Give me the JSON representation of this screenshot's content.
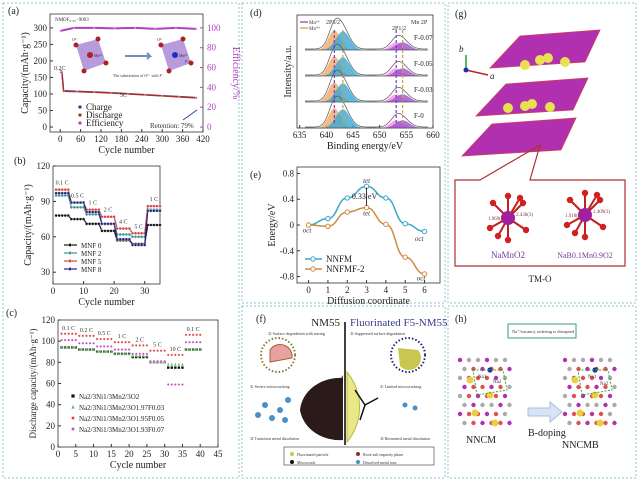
{
  "panels": {
    "a": {
      "label": "(a)"
    },
    "b": {
      "label": "(b)"
    },
    "c": {
      "label": "(c)"
    },
    "d": {
      "label": "(d)"
    },
    "e": {
      "label": "(e)"
    },
    "f": {
      "label": "(f)"
    },
    "g": {
      "label": "(g)"
    },
    "h": {
      "label": "(h)"
    }
  },
  "chart_data": [
    {
      "id": "a",
      "type": "line",
      "xlabel": "Cycle number",
      "ylabel": "Capacity/(mAh·g⁻¹)",
      "y2label": "Efficiency/%",
      "xlim": [
        -30,
        420
      ],
      "ylim": [
        -15,
        342
      ],
      "y2lim": [
        -5,
        114
      ],
      "xticks": [
        0,
        60,
        120,
        180,
        240,
        300,
        360,
        420
      ],
      "yticks": [
        0,
        50,
        100,
        150,
        200,
        250,
        300
      ],
      "y2ticks": [
        0,
        20,
        40,
        60,
        80,
        100
      ],
      "annotations": {
        "sample": "NMOF₀.₀₃−9003",
        "rate1": "0.2C",
        "rate2": "5C",
        "retention": "Retention: 79%",
        "substitution": "The substitution of O²⁻ with F⁻",
        "ion_o": "O²⁻",
        "ion_mn": "Mn³⁺",
        "ion_f": "F⁻"
      },
      "series": [
        {
          "name": "Charge",
          "color": "#2b3a8c",
          "points": [
            [
              1,
              172
            ],
            [
              3,
              170
            ],
            [
              5,
              168
            ],
            [
              10,
              110
            ],
            [
              50,
              108
            ],
            [
              100,
              106
            ],
            [
              150,
              104
            ],
            [
              200,
              101
            ],
            [
              250,
              98
            ],
            [
              300,
              95
            ],
            [
              350,
              92
            ],
            [
              400,
              89
            ]
          ]
        },
        {
          "name": "Discharge",
          "color": "#b22a2a",
          "points": [
            [
              1,
              165
            ],
            [
              3,
              166
            ],
            [
              5,
              165
            ],
            [
              10,
              108
            ],
            [
              50,
              107
            ],
            [
              100,
              105
            ],
            [
              150,
              103
            ],
            [
              200,
              100
            ],
            [
              250,
              97
            ],
            [
              300,
              94
            ],
            [
              350,
              91
            ],
            [
              400,
              88
            ]
          ]
        },
        {
          "name": "Efficiency",
          "color": "#b040c0",
          "axis": "right",
          "points": [
            [
              1,
              97
            ],
            [
              40,
              100
            ],
            [
              100,
              100
            ],
            [
              160,
              99.5
            ],
            [
              220,
              100
            ],
            [
              280,
              99
            ],
            [
              340,
              100
            ],
            [
              400,
              99
            ]
          ]
        }
      ]
    },
    {
      "id": "b",
      "type": "line",
      "xlabel": "Cycle number",
      "ylabel": "Capacity/(mAh·g⁻¹)",
      "xlim": [
        0,
        35
      ],
      "ylim": [
        20,
        120
      ],
      "xticks": [
        0,
        10,
        20,
        30
      ],
      "yticks": [
        30,
        60,
        90,
        120
      ],
      "rates": [
        "0.1 C",
        "0.5 C",
        "1 C",
        "2 C",
        "4 C",
        "5 C",
        "1 C"
      ],
      "cycles_per_rate": 5,
      "series": [
        {
          "name": "MNF 0",
          "color": "#111111",
          "values": [
            78,
            75,
            71,
            65,
            57,
            54,
            70
          ]
        },
        {
          "name": "MNF 2",
          "color": "#3d8f8a",
          "values": [
            95,
            85,
            79,
            71,
            62,
            60,
            83
          ]
        },
        {
          "name": "MNF 5",
          "color": "#d04545",
          "values": [
            100,
            89,
            83,
            77,
            67,
            63,
            86
          ]
        },
        {
          "name": "MNF 8",
          "color": "#23237e",
          "values": [
            97,
            89,
            81,
            71,
            58,
            53,
            82
          ]
        }
      ]
    },
    {
      "id": "c",
      "type": "scatter",
      "xlabel": "Cycle number",
      "ylabel": "Discharge capacity/(mAh·g⁻¹)",
      "xlim": [
        0,
        45
      ],
      "ylim": [
        0,
        120
      ],
      "xticks": [
        0,
        5,
        10,
        15,
        20,
        25,
        30,
        35,
        40,
        45
      ],
      "yticks": [
        0,
        20,
        40,
        60,
        80,
        100,
        120
      ],
      "rates": [
        "0.1 C",
        "0.2 C",
        "0.5 C",
        "1 C",
        "2 C",
        "5 C",
        "10 C",
        "0.1 C"
      ],
      "cycles_per_rate": 5,
      "series": [
        {
          "name": "Na2/3Ni1/3Mn2/3O2",
          "color": "#111111",
          "marker": "square",
          "values": [
            94,
            92,
            90,
            88,
            85,
            80,
            75,
            92
          ]
        },
        {
          "name": "Na2/3Ni1/3Mn2/3O1.97F0.03",
          "color": "#5cb85c",
          "marker": "triangle",
          "values": [
            94,
            92,
            90,
            88,
            86,
            80,
            78,
            92
          ]
        },
        {
          "name": "Na2/3Ni1/3Mn2/3O1.95F0.05",
          "color": "#e04444",
          "marker": "circle",
          "values": [
            107,
            105,
            102,
            99,
            96,
            91,
            87,
            106
          ]
        },
        {
          "name": "Na2/3Ni1/3Mn2/3O1.93F0.07",
          "color": "#c050c0",
          "marker": "circle",
          "values": [
            101,
            98,
            95,
            92,
            88,
            81,
            59,
            99
          ]
        }
      ]
    },
    {
      "id": "d",
      "type": "line",
      "xlabel": "Binding energy/eV",
      "ylabel": "Intensity/a.u.",
      "xlim": [
        634.5,
        660
      ],
      "xticks": [
        635,
        640,
        645,
        650,
        655,
        660
      ],
      "title": "Mn 2P",
      "peak_labels": {
        "p32": "2P3/2",
        "p12": "2P1/2"
      },
      "legend": [
        {
          "name": "Mn³⁺",
          "color": "#7a3cc8"
        },
        {
          "name": "Mn⁴⁺",
          "color": "#c8a040"
        }
      ],
      "peaks": {
        "mn3_32": 641.5,
        "mn4_32": 643.1,
        "mn3_12": 653.1,
        "mn4_12": 654.3
      },
      "spectra": [
        "F-0.07",
        "F-0.05",
        "F-0.03",
        "F-0"
      ],
      "colors": {
        "mn3_fill": "#f2a868",
        "mn4_fill": "#3aa8d0",
        "p12_a": "#f090e0",
        "p12_b": "#a050d0",
        "envelope": "#555555"
      }
    },
    {
      "id": "e",
      "type": "line",
      "xlabel": "Diffusion coordinate",
      "ylabel": "Energy/eV",
      "xlim": [
        -0.6,
        6.8
      ],
      "ylim": [
        -0.9,
        0.9
      ],
      "xticks": [
        0,
        1,
        2,
        3,
        4,
        5,
        6
      ],
      "yticks": [
        -0.8,
        -0.4,
        0,
        0.4,
        0.8
      ],
      "annotations": {
        "barrier": "0.33 eV",
        "tet_top": "tet",
        "tet_bottom": "tet",
        "oct_left": "oct",
        "oct_right1": "oct",
        "oct_right2": "oct"
      },
      "series": [
        {
          "name": "NNFM",
          "color": "#3aa8c8",
          "x": [
            0,
            1,
            2,
            3,
            4,
            5,
            6
          ],
          "y": [
            0,
            0.1,
            0.42,
            0.6,
            0.42,
            0.02,
            -0.1
          ]
        },
        {
          "name": "NNFMF-2",
          "color": "#d08a40",
          "x": [
            0,
            1,
            2,
            3,
            4,
            5,
            6
          ],
          "y": [
            0,
            -0.02,
            0.2,
            0.27,
            0.01,
            -0.5,
            -0.76
          ]
        }
      ]
    }
  ],
  "f": {
    "left_title": "NM55",
    "right_title": "Fluorinated F5-NM55",
    "left_notes": [
      "② Surface degradation with tearing",
      "① Severe microcracking",
      "③ Transition metal dissolution"
    ],
    "right_notes": [
      "② Suppressed surface degradation",
      "① Limited microcracking",
      "③ Restrained metal dissolution"
    ],
    "legend": [
      "Fluorinated particle",
      "Rock-salt impurity phase",
      "Microcrack",
      "Dissolved metal ions"
    ]
  },
  "g": {
    "axis_b": "b",
    "axis_a": "a",
    "left_formula": "NaMnO2",
    "right_formula": "NaB0.1Mn0.9O2",
    "left_bonds": [
      "1.969(9)",
      "2.438(3)"
    ],
    "right_bonds": [
      "1.918(2)",
      "2.409(3)"
    ],
    "caption": "TM-O"
  },
  "h": {
    "callout": "Na⁺/vacancy ordering is disrupted",
    "left": "NNCM",
    "right": "NNCMB",
    "arrow": "B-doping",
    "site1": "Na1",
    "site2": "Na2",
    "site3": "Na1",
    "site4": "Na2"
  }
}
